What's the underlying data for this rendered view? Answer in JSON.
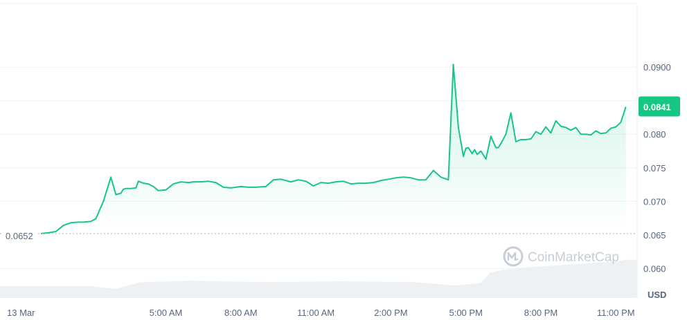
{
  "chart_data": {
    "type": "area",
    "currency_unit": "USD",
    "watermark": "CoinMarketCap",
    "y_ticks": [
      "0.0900",
      "0.080",
      "0.075",
      "0.070",
      "0.065",
      "0.060"
    ],
    "y_tick_values": [
      0.09,
      0.08,
      0.075,
      0.07,
      0.065,
      0.06
    ],
    "ylim": [
      0.0555,
      0.0995
    ],
    "x_ticks": [
      "13 Mar",
      "5:00 AM",
      "8:00 AM",
      "11:00 AM",
      "2:00 PM",
      "5:00 PM",
      "8:00 PM",
      "11:00 PM"
    ],
    "x_tick_hours": [
      0,
      5,
      8,
      11,
      14,
      17,
      20,
      23
    ],
    "xlim_hours": [
      -1.5,
      24.0
    ],
    "start_price": 0.0652,
    "start_price_label": "0.0652",
    "current_price": 0.0841,
    "current_price_label": "0.0841",
    "colors": {
      "line": "#16c784",
      "fill": "#16c784",
      "grid": "#eff2f5",
      "text": "#58667e",
      "volume": "#eff2f5"
    },
    "series": [
      {
        "x": [
          0.0,
          0.3,
          0.6,
          0.9,
          1.2,
          1.5,
          1.7,
          2.0,
          2.2,
          2.5,
          2.8,
          3.0,
          3.2,
          3.3,
          3.4,
          3.6,
          3.8,
          3.9,
          4.1,
          4.3,
          4.5,
          4.7,
          5.0,
          5.3,
          5.6,
          5.9,
          6.1,
          6.4,
          6.7,
          7.0,
          7.3,
          7.6,
          8.0,
          8.3,
          8.6,
          9.0,
          9.3,
          9.6,
          10.0,
          10.3,
          10.6,
          10.9,
          11.2,
          11.5,
          11.8,
          12.1,
          12.4,
          12.7,
          13.0,
          13.3,
          13.6,
          13.9,
          14.2,
          14.5,
          14.8,
          15.1,
          15.4,
          15.7,
          16.0,
          16.3,
          16.5,
          16.7,
          16.9,
          17.0,
          17.1,
          17.25,
          17.35,
          17.45,
          17.6,
          17.8,
          18.0,
          18.2,
          18.3,
          18.4,
          18.6,
          18.8,
          19.0,
          19.2,
          19.4,
          19.6,
          19.8,
          20.0,
          20.2,
          20.4,
          20.6,
          20.8,
          21.0,
          21.2,
          21.4,
          21.6,
          21.8,
          22.0,
          22.2,
          22.4,
          22.6,
          22.8,
          23.0,
          23.2,
          23.4
        ],
        "y": [
          0.0652,
          0.0653,
          0.0655,
          0.0664,
          0.0668,
          0.0669,
          0.0669,
          0.067,
          0.0674,
          0.07,
          0.0736,
          0.071,
          0.0712,
          0.0718,
          0.0719,
          0.0719,
          0.072,
          0.073,
          0.0727,
          0.0726,
          0.0722,
          0.0716,
          0.0717,
          0.0726,
          0.0729,
          0.0728,
          0.0729,
          0.0729,
          0.073,
          0.0728,
          0.0721,
          0.072,
          0.0722,
          0.0721,
          0.0721,
          0.0722,
          0.0732,
          0.0733,
          0.0729,
          0.0732,
          0.073,
          0.0723,
          0.0728,
          0.0727,
          0.0729,
          0.073,
          0.0726,
          0.0727,
          0.0727,
          0.0728,
          0.0731,
          0.0733,
          0.0735,
          0.0736,
          0.0735,
          0.0732,
          0.0732,
          0.0746,
          0.0736,
          0.0732,
          0.0904,
          0.081,
          0.0767,
          0.0779,
          0.078,
          0.0771,
          0.0777,
          0.077,
          0.0775,
          0.0763,
          0.0797,
          0.078,
          0.078,
          0.0786,
          0.08,
          0.0832,
          0.0789,
          0.0792,
          0.0792,
          0.0793,
          0.0804,
          0.08,
          0.0811,
          0.0802,
          0.082,
          0.0812,
          0.081,
          0.0806,
          0.081,
          0.08,
          0.08,
          0.0799,
          0.0805,
          0.0801,
          0.0802,
          0.0809,
          0.0811,
          0.0818,
          0.0841
        ]
      }
    ],
    "volume_relative": {
      "x": [
        0.0,
        2.0,
        3.0,
        4.0,
        6.0,
        9.0,
        12.0,
        15.0,
        16.5,
        17.0,
        17.6,
        18.0,
        19.0,
        20.0,
        21.0,
        22.0,
        23.0,
        23.4
      ],
      "v": [
        0.28,
        0.28,
        0.22,
        0.38,
        0.41,
        0.38,
        0.4,
        0.38,
        0.3,
        0.32,
        0.36,
        0.62,
        0.72,
        0.76,
        0.8,
        0.84,
        0.88,
        0.92
      ]
    }
  }
}
